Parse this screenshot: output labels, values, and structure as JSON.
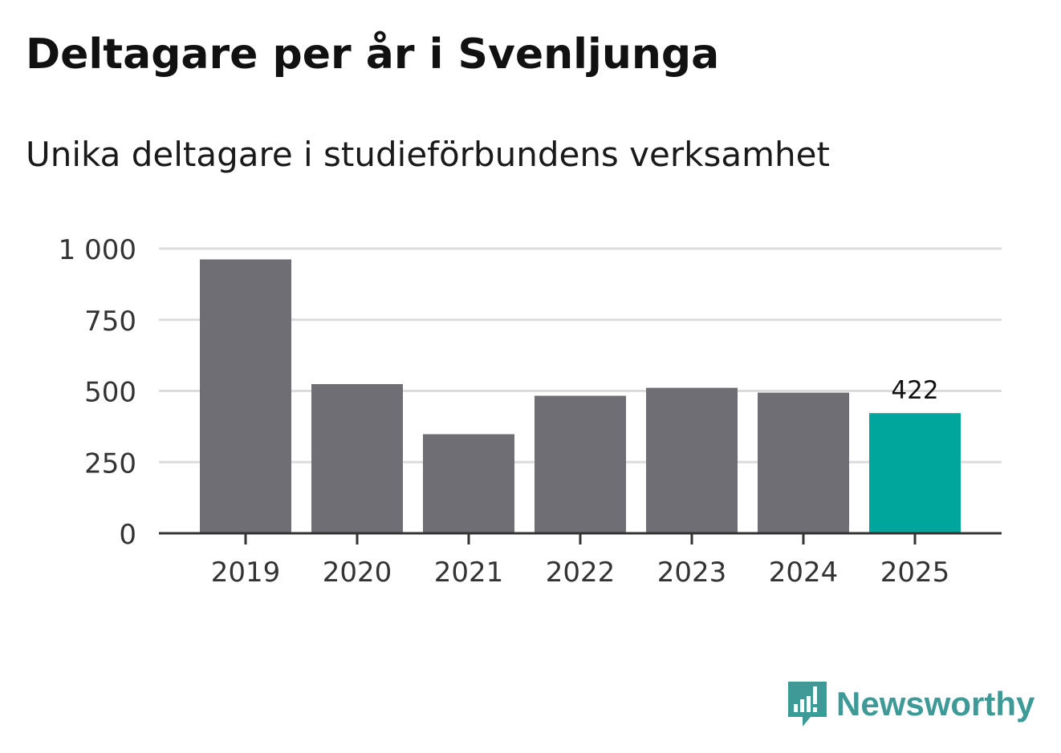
{
  "title": "Deltagare per år i Svenljunga",
  "subtitle": "Unika deltagare i studieförbundens verksamhet",
  "brand": {
    "name": "Newsworthy",
    "icon": "newsworthy-logo-icon",
    "color": "#3d9a97"
  },
  "chart_data": {
    "type": "bar",
    "title": "Deltagare per år i Svenljunga",
    "subtitle": "Unika deltagare i studieförbundens verksamhet",
    "xlabel": "",
    "ylabel": "",
    "categories": [
      "2019",
      "2020",
      "2021",
      "2022",
      "2023",
      "2024",
      "2025"
    ],
    "values": [
      962,
      524,
      348,
      483,
      511,
      494,
      422
    ],
    "highlight_index": 6,
    "highlight_label": "422",
    "ylim": [
      0,
      1000
    ],
    "yticks": [
      0,
      250,
      500,
      750,
      1000
    ],
    "ytick_labels": [
      "0",
      "250",
      "500",
      "750",
      "1 000"
    ],
    "grid": true,
    "colors": {
      "bar": "#6f6e74",
      "highlight": "#00a59b",
      "grid": "#dcdcdc",
      "axis": "#333333",
      "text": "#333333"
    }
  }
}
